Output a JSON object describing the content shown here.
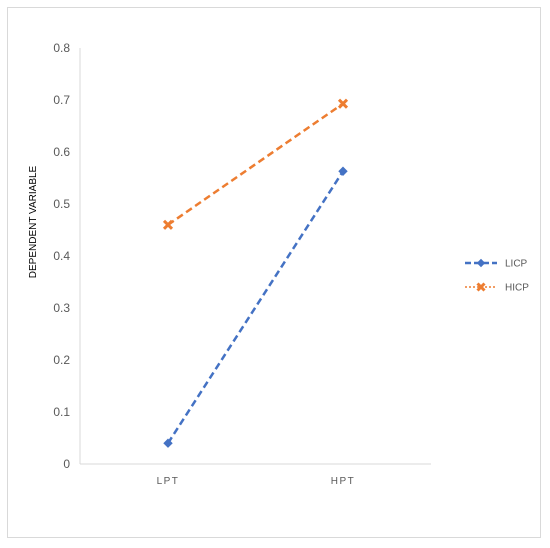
{
  "chart_data": {
    "type": "line",
    "title": "",
    "xlabel": "",
    "ylabel": "DEPENDENT VARIABLE",
    "categories": [
      "LPT",
      "HPT"
    ],
    "ylim": [
      0,
      0.8
    ],
    "yticks": [
      "0",
      "0.1",
      "0.2",
      "0.3",
      "0.4",
      "0.5",
      "0.6",
      "0.7",
      "0.8"
    ],
    "grid": false,
    "legend_position": "right",
    "series": [
      {
        "name": "LICP",
        "values": [
          0.04,
          0.563
        ],
        "color": "#4472c4",
        "line_style": "dashed",
        "marker": "diamond"
      },
      {
        "name": "HICP",
        "values": [
          0.46,
          0.693
        ],
        "color": "#ed7d31",
        "line_style": "dashed",
        "marker": "x-cross"
      }
    ]
  }
}
